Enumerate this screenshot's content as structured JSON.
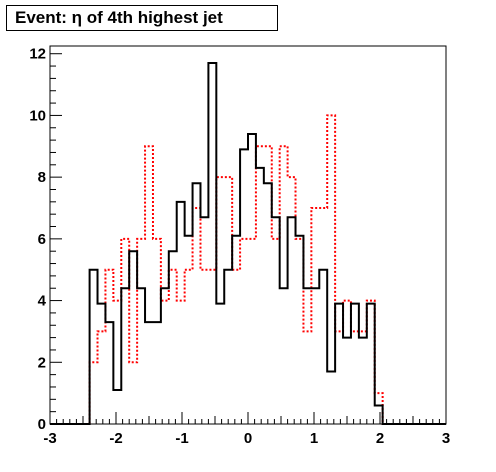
{
  "chart_data": {
    "type": "histogram",
    "title": "Event: η of 4th highest jet",
    "xlabel": "",
    "ylabel": "",
    "xlim": [
      -3,
      3
    ],
    "ylim": [
      0,
      12.25
    ],
    "grid": false,
    "x_ticks": [
      -3,
      -2,
      -1,
      0,
      1,
      2,
      3
    ],
    "x_tick_labels": [
      "-3",
      "-2",
      "-1",
      "0",
      "1",
      "2",
      "3"
    ],
    "y_ticks": [
      0,
      2,
      4,
      6,
      8,
      10,
      12
    ],
    "y_tick_labels": [
      "0",
      "2",
      "4",
      "6",
      "8",
      "10",
      "12"
    ],
    "bin_edges": [
      -3.0,
      -2.88,
      -2.76,
      -2.64,
      -2.52,
      -2.4,
      -2.28,
      -2.16,
      -2.04,
      -1.92,
      -1.8,
      -1.68,
      -1.56,
      -1.44,
      -1.32,
      -1.2,
      -1.08,
      -0.96,
      -0.84,
      -0.72,
      -0.6,
      -0.48,
      -0.36,
      -0.24,
      -0.12,
      0.0,
      0.12,
      0.24,
      0.36,
      0.48,
      0.6,
      0.72,
      0.84,
      0.96,
      1.08,
      1.2,
      1.32,
      1.44,
      1.56,
      1.68,
      1.8,
      1.92,
      2.04,
      2.16,
      2.28,
      2.4,
      2.52,
      2.64,
      2.76,
      2.88,
      3.0
    ],
    "series": [
      {
        "style": "solid",
        "color": "#000000",
        "values": [
          0,
          0,
          0,
          0,
          0,
          5.0,
          3.9,
          3.3,
          1.1,
          4.4,
          5.6,
          4.4,
          3.3,
          3.3,
          4.4,
          5.6,
          7.2,
          6.1,
          7.8,
          6.7,
          11.7,
          3.9,
          5.0,
          6.1,
          8.9,
          9.4,
          8.3,
          7.8,
          6.7,
          4.4,
          6.7,
          6.1,
          4.4,
          4.4,
          5.0,
          1.7,
          3.9,
          2.8,
          3.9,
          2.8,
          3.9,
          0.6,
          0,
          0,
          0,
          0,
          0,
          0,
          0,
          0
        ]
      },
      {
        "style": "dotted",
        "color": "#ff0000",
        "values": [
          0,
          0,
          0,
          0,
          0,
          2.0,
          3.0,
          5.0,
          4.0,
          6.0,
          2.0,
          6.0,
          9.0,
          6.0,
          4.0,
          5.0,
          4.0,
          5.0,
          7.0,
          5.0,
          5.0,
          8.0,
          8.0,
          5.0,
          6.0,
          6.0,
          9.0,
          9.0,
          6.0,
          9.0,
          8.0,
          6.0,
          3.0,
          7.0,
          7.0,
          10.0,
          3.0,
          4.0,
          3.0,
          3.0,
          4.0,
          1.0,
          0,
          0,
          0,
          0,
          0,
          0,
          0,
          0
        ]
      }
    ]
  }
}
